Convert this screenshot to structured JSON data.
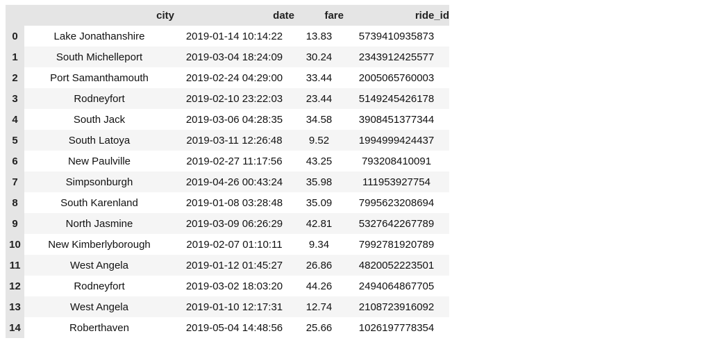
{
  "table": {
    "columns": [
      "city",
      "date",
      "fare",
      "ride_id"
    ],
    "rows": [
      {
        "index": "0",
        "city": "Lake Jonathanshire",
        "date": "2019-01-14 10:14:22",
        "fare": "13.83",
        "ride_id": "5739410935873"
      },
      {
        "index": "1",
        "city": "South Michelleport",
        "date": "2019-03-04 18:24:09",
        "fare": "30.24",
        "ride_id": "2343912425577"
      },
      {
        "index": "2",
        "city": "Port Samanthamouth",
        "date": "2019-02-24 04:29:00",
        "fare": "33.44",
        "ride_id": "2005065760003"
      },
      {
        "index": "3",
        "city": "Rodneyfort",
        "date": "2019-02-10 23:22:03",
        "fare": "23.44",
        "ride_id": "5149245426178"
      },
      {
        "index": "4",
        "city": "South Jack",
        "date": "2019-03-06 04:28:35",
        "fare": "34.58",
        "ride_id": "3908451377344"
      },
      {
        "index": "5",
        "city": "South Latoya",
        "date": "2019-03-11 12:26:48",
        "fare": "9.52",
        "ride_id": "1994999424437"
      },
      {
        "index": "6",
        "city": "New Paulville",
        "date": "2019-02-27 11:17:56",
        "fare": "43.25",
        "ride_id": "793208410091"
      },
      {
        "index": "7",
        "city": "Simpsonburgh",
        "date": "2019-04-26 00:43:24",
        "fare": "35.98",
        "ride_id": "111953927754"
      },
      {
        "index": "8",
        "city": "South Karenland",
        "date": "2019-01-08 03:28:48",
        "fare": "35.09",
        "ride_id": "7995623208694"
      },
      {
        "index": "9",
        "city": "North Jasmine",
        "date": "2019-03-09 06:26:29",
        "fare": "42.81",
        "ride_id": "5327642267789"
      },
      {
        "index": "10",
        "city": "New Kimberlyborough",
        "date": "2019-02-07 01:10:11",
        "fare": "9.34",
        "ride_id": "7992781920789"
      },
      {
        "index": "11",
        "city": "West Angela",
        "date": "2019-01-12 01:45:27",
        "fare": "26.86",
        "ride_id": "4820052223501"
      },
      {
        "index": "12",
        "city": "Rodneyfort",
        "date": "2019-03-02 18:03:20",
        "fare": "44.26",
        "ride_id": "2494064867705"
      },
      {
        "index": "13",
        "city": "West Angela",
        "date": "2019-01-10 12:17:31",
        "fare": "12.74",
        "ride_id": "2108723916092"
      },
      {
        "index": "14",
        "city": "Roberthaven",
        "date": "2019-05-04 14:48:56",
        "fare": "25.66",
        "ride_id": "1026197778354"
      }
    ]
  }
}
